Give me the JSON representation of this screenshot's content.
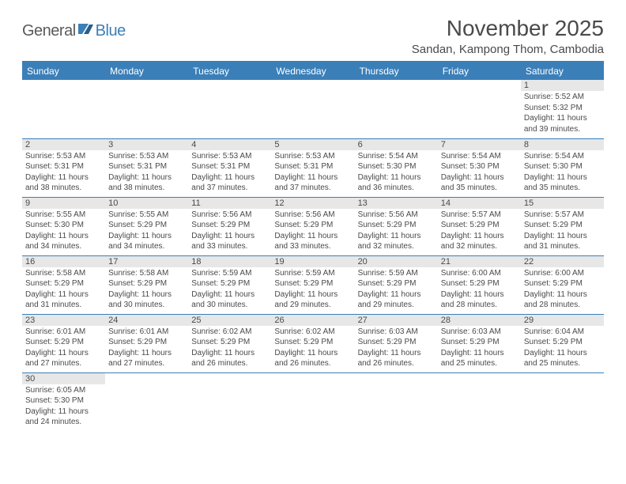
{
  "brand": {
    "part1": "General",
    "part2": "Blue"
  },
  "title": "November 2025",
  "location": "Sandan, Kampong Thom, Cambodia",
  "colors": {
    "accent": "#3b7fb8",
    "header_text": "#ffffff",
    "daynum_bg": "#e7e7e7",
    "text": "#4a4a4a",
    "background": "#ffffff"
  },
  "weekdays": [
    "Sunday",
    "Monday",
    "Tuesday",
    "Wednesday",
    "Thursday",
    "Friday",
    "Saturday"
  ],
  "weeks": [
    [
      null,
      null,
      null,
      null,
      null,
      null,
      {
        "n": "1",
        "sunrise": "Sunrise: 5:52 AM",
        "sunset": "Sunset: 5:32 PM",
        "daylight": "Daylight: 11 hours and 39 minutes."
      }
    ],
    [
      {
        "n": "2",
        "sunrise": "Sunrise: 5:53 AM",
        "sunset": "Sunset: 5:31 PM",
        "daylight": "Daylight: 11 hours and 38 minutes."
      },
      {
        "n": "3",
        "sunrise": "Sunrise: 5:53 AM",
        "sunset": "Sunset: 5:31 PM",
        "daylight": "Daylight: 11 hours and 38 minutes."
      },
      {
        "n": "4",
        "sunrise": "Sunrise: 5:53 AM",
        "sunset": "Sunset: 5:31 PM",
        "daylight": "Daylight: 11 hours and 37 minutes."
      },
      {
        "n": "5",
        "sunrise": "Sunrise: 5:53 AM",
        "sunset": "Sunset: 5:31 PM",
        "daylight": "Daylight: 11 hours and 37 minutes."
      },
      {
        "n": "6",
        "sunrise": "Sunrise: 5:54 AM",
        "sunset": "Sunset: 5:30 PM",
        "daylight": "Daylight: 11 hours and 36 minutes."
      },
      {
        "n": "7",
        "sunrise": "Sunrise: 5:54 AM",
        "sunset": "Sunset: 5:30 PM",
        "daylight": "Daylight: 11 hours and 35 minutes."
      },
      {
        "n": "8",
        "sunrise": "Sunrise: 5:54 AM",
        "sunset": "Sunset: 5:30 PM",
        "daylight": "Daylight: 11 hours and 35 minutes."
      }
    ],
    [
      {
        "n": "9",
        "sunrise": "Sunrise: 5:55 AM",
        "sunset": "Sunset: 5:30 PM",
        "daylight": "Daylight: 11 hours and 34 minutes."
      },
      {
        "n": "10",
        "sunrise": "Sunrise: 5:55 AM",
        "sunset": "Sunset: 5:29 PM",
        "daylight": "Daylight: 11 hours and 34 minutes."
      },
      {
        "n": "11",
        "sunrise": "Sunrise: 5:56 AM",
        "sunset": "Sunset: 5:29 PM",
        "daylight": "Daylight: 11 hours and 33 minutes."
      },
      {
        "n": "12",
        "sunrise": "Sunrise: 5:56 AM",
        "sunset": "Sunset: 5:29 PM",
        "daylight": "Daylight: 11 hours and 33 minutes."
      },
      {
        "n": "13",
        "sunrise": "Sunrise: 5:56 AM",
        "sunset": "Sunset: 5:29 PM",
        "daylight": "Daylight: 11 hours and 32 minutes."
      },
      {
        "n": "14",
        "sunrise": "Sunrise: 5:57 AM",
        "sunset": "Sunset: 5:29 PM",
        "daylight": "Daylight: 11 hours and 32 minutes."
      },
      {
        "n": "15",
        "sunrise": "Sunrise: 5:57 AM",
        "sunset": "Sunset: 5:29 PM",
        "daylight": "Daylight: 11 hours and 31 minutes."
      }
    ],
    [
      {
        "n": "16",
        "sunrise": "Sunrise: 5:58 AM",
        "sunset": "Sunset: 5:29 PM",
        "daylight": "Daylight: 11 hours and 31 minutes."
      },
      {
        "n": "17",
        "sunrise": "Sunrise: 5:58 AM",
        "sunset": "Sunset: 5:29 PM",
        "daylight": "Daylight: 11 hours and 30 minutes."
      },
      {
        "n": "18",
        "sunrise": "Sunrise: 5:59 AM",
        "sunset": "Sunset: 5:29 PM",
        "daylight": "Daylight: 11 hours and 30 minutes."
      },
      {
        "n": "19",
        "sunrise": "Sunrise: 5:59 AM",
        "sunset": "Sunset: 5:29 PM",
        "daylight": "Daylight: 11 hours and 29 minutes."
      },
      {
        "n": "20",
        "sunrise": "Sunrise: 5:59 AM",
        "sunset": "Sunset: 5:29 PM",
        "daylight": "Daylight: 11 hours and 29 minutes."
      },
      {
        "n": "21",
        "sunrise": "Sunrise: 6:00 AM",
        "sunset": "Sunset: 5:29 PM",
        "daylight": "Daylight: 11 hours and 28 minutes."
      },
      {
        "n": "22",
        "sunrise": "Sunrise: 6:00 AM",
        "sunset": "Sunset: 5:29 PM",
        "daylight": "Daylight: 11 hours and 28 minutes."
      }
    ],
    [
      {
        "n": "23",
        "sunrise": "Sunrise: 6:01 AM",
        "sunset": "Sunset: 5:29 PM",
        "daylight": "Daylight: 11 hours and 27 minutes."
      },
      {
        "n": "24",
        "sunrise": "Sunrise: 6:01 AM",
        "sunset": "Sunset: 5:29 PM",
        "daylight": "Daylight: 11 hours and 27 minutes."
      },
      {
        "n": "25",
        "sunrise": "Sunrise: 6:02 AM",
        "sunset": "Sunset: 5:29 PM",
        "daylight": "Daylight: 11 hours and 26 minutes."
      },
      {
        "n": "26",
        "sunrise": "Sunrise: 6:02 AM",
        "sunset": "Sunset: 5:29 PM",
        "daylight": "Daylight: 11 hours and 26 minutes."
      },
      {
        "n": "27",
        "sunrise": "Sunrise: 6:03 AM",
        "sunset": "Sunset: 5:29 PM",
        "daylight": "Daylight: 11 hours and 26 minutes."
      },
      {
        "n": "28",
        "sunrise": "Sunrise: 6:03 AM",
        "sunset": "Sunset: 5:29 PM",
        "daylight": "Daylight: 11 hours and 25 minutes."
      },
      {
        "n": "29",
        "sunrise": "Sunrise: 6:04 AM",
        "sunset": "Sunset: 5:29 PM",
        "daylight": "Daylight: 11 hours and 25 minutes."
      }
    ],
    [
      {
        "n": "30",
        "sunrise": "Sunrise: 6:05 AM",
        "sunset": "Sunset: 5:30 PM",
        "daylight": "Daylight: 11 hours and 24 minutes."
      },
      null,
      null,
      null,
      null,
      null,
      null
    ]
  ]
}
